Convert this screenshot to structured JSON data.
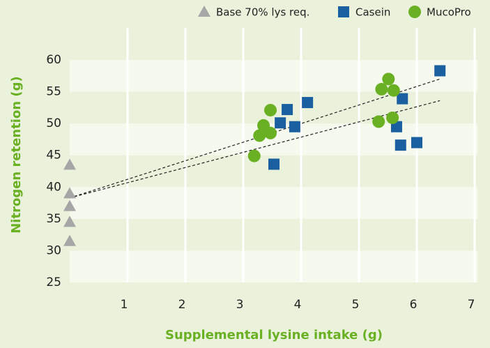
{
  "chart_data": {
    "type": "scatter",
    "x_label": "Supplemental lysine intake (g)",
    "y_label": "Nitrogen retention (g)",
    "xlim": [
      0,
      7
    ],
    "xticks": [
      1,
      2,
      3,
      4,
      5,
      6,
      7
    ],
    "ylim": [
      25,
      65
    ],
    "yticks": [
      25,
      30,
      35,
      40,
      45,
      50,
      55,
      60
    ],
    "grid": true,
    "series": [
      {
        "name": "Base 70% lys req.",
        "color": "#a6a6a6",
        "marker": "triangle",
        "x": [
          0,
          0,
          0,
          0,
          0
        ],
        "values": [
          43.5,
          39,
          37,
          34.5,
          31.5
        ]
      },
      {
        "name": "Casein",
        "color": "#1a5fa0",
        "marker": "square",
        "x": [
          6.4,
          4.11,
          3.76,
          3.64,
          3.89,
          3.53,
          5.75,
          5.65,
          5.72,
          6.0
        ],
        "values": [
          58.3,
          53.3,
          52.2,
          50.1,
          49.5,
          43.6,
          53.9,
          49.5,
          46.6,
          47.0
        ]
      },
      {
        "name": "MucoPro",
        "color": "#6ab023",
        "marker": "circle",
        "x": [
          3.19,
          3.28,
          3.35,
          3.47,
          3.47,
          5.51,
          5.39,
          5.6,
          5.34,
          5.58
        ],
        "values": [
          44.9,
          48.1,
          49.7,
          48.5,
          52.1,
          57.0,
          55.4,
          55.2,
          50.3,
          50.9
        ]
      }
    ],
    "trendlines": [
      {
        "x": [
          0,
          6.4
        ],
        "values": [
          38.3,
          57.0
        ]
      },
      {
        "x": [
          0,
          6.4
        ],
        "values": [
          38.3,
          53.6
        ]
      }
    ]
  }
}
